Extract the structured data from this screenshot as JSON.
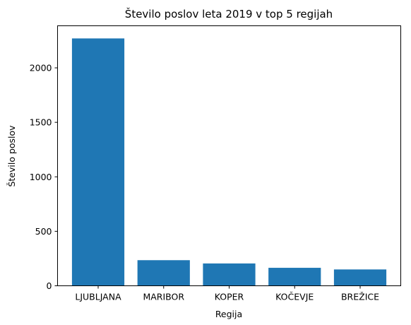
{
  "chart_data": {
    "type": "bar",
    "title": "Število poslov leta 2019 v top 5 regijah",
    "xlabel": "Regija",
    "ylabel": "Število poslov",
    "categories": [
      "LJUBLJANA",
      "MARIBOR",
      "KOPER",
      "KOČEVJE",
      "BREŽICE"
    ],
    "values": [
      2270,
      235,
      205,
      165,
      150
    ],
    "ylim": [
      0,
      2386
    ],
    "yticks": [
      0,
      500,
      1000,
      1500,
      2000
    ],
    "bar_color": "#1f77b4",
    "grid": false,
    "legend": "none"
  }
}
